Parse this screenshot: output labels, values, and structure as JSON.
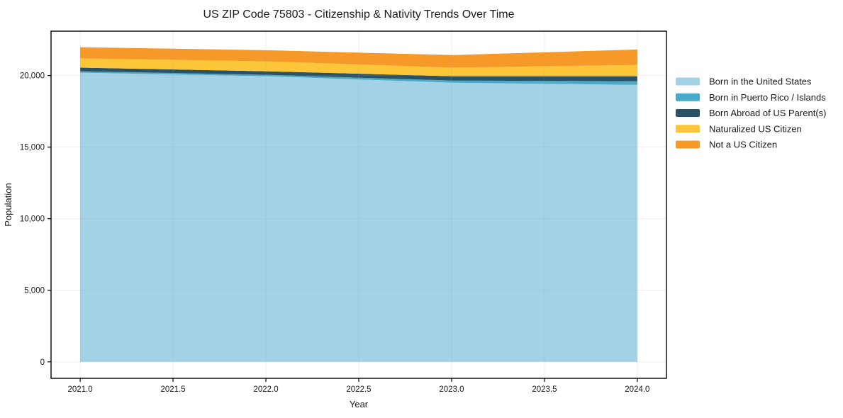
{
  "chart_data": {
    "type": "area",
    "stacked": true,
    "title": "US ZIP Code 75803 - Citizenship & Nativity Trends Over Time",
    "xlabel": "Year",
    "ylabel": "Population",
    "x": [
      2021,
      2022,
      2023,
      2024
    ],
    "series": [
      {
        "name": "Born in the United States",
        "color": "#9ed0e6",
        "values": [
          20200,
          19950,
          19500,
          19350
        ]
      },
      {
        "name": "Born in Puerto Rico / Islands",
        "color": "#3fa6c4",
        "values": [
          100,
          100,
          150,
          250
        ]
      },
      {
        "name": "Born Abroad of US Parent(s)",
        "color": "#20495c",
        "values": [
          250,
          250,
          300,
          350
        ]
      },
      {
        "name": "Naturalized US Citizen",
        "color": "#fdc32e",
        "values": [
          650,
          690,
          600,
          790
        ]
      },
      {
        "name": "Not a US Citizen",
        "color": "#f6941d",
        "values": [
          780,
          780,
          880,
          1080
        ]
      }
    ],
    "totals": [
      21980,
      21770,
      21430,
      21820
    ],
    "x_ticks": [
      2021.0,
      2021.5,
      2022.0,
      2022.5,
      2023.0,
      2023.5,
      2024.0
    ],
    "x_tick_labels": [
      "2021.0",
      "2021.5",
      "2022.0",
      "2022.5",
      "2023.0",
      "2023.5",
      "2024.0"
    ],
    "y_ticks": [
      0,
      5000,
      10000,
      15000,
      20000
    ],
    "y_tick_labels": [
      "0",
      "5,000",
      "10,000",
      "15,000",
      "20,000"
    ],
    "xlim": [
      2020.843,
      2024.157
    ],
    "ylim": [
      -1150,
      23100
    ],
    "grid": true,
    "legend_position": "right"
  },
  "style": {
    "grid_color": "#999999",
    "grid_opacity": "0.18",
    "spine_color": "#000000",
    "tick_color": "#000000",
    "fill_opacity": "0.95"
  }
}
